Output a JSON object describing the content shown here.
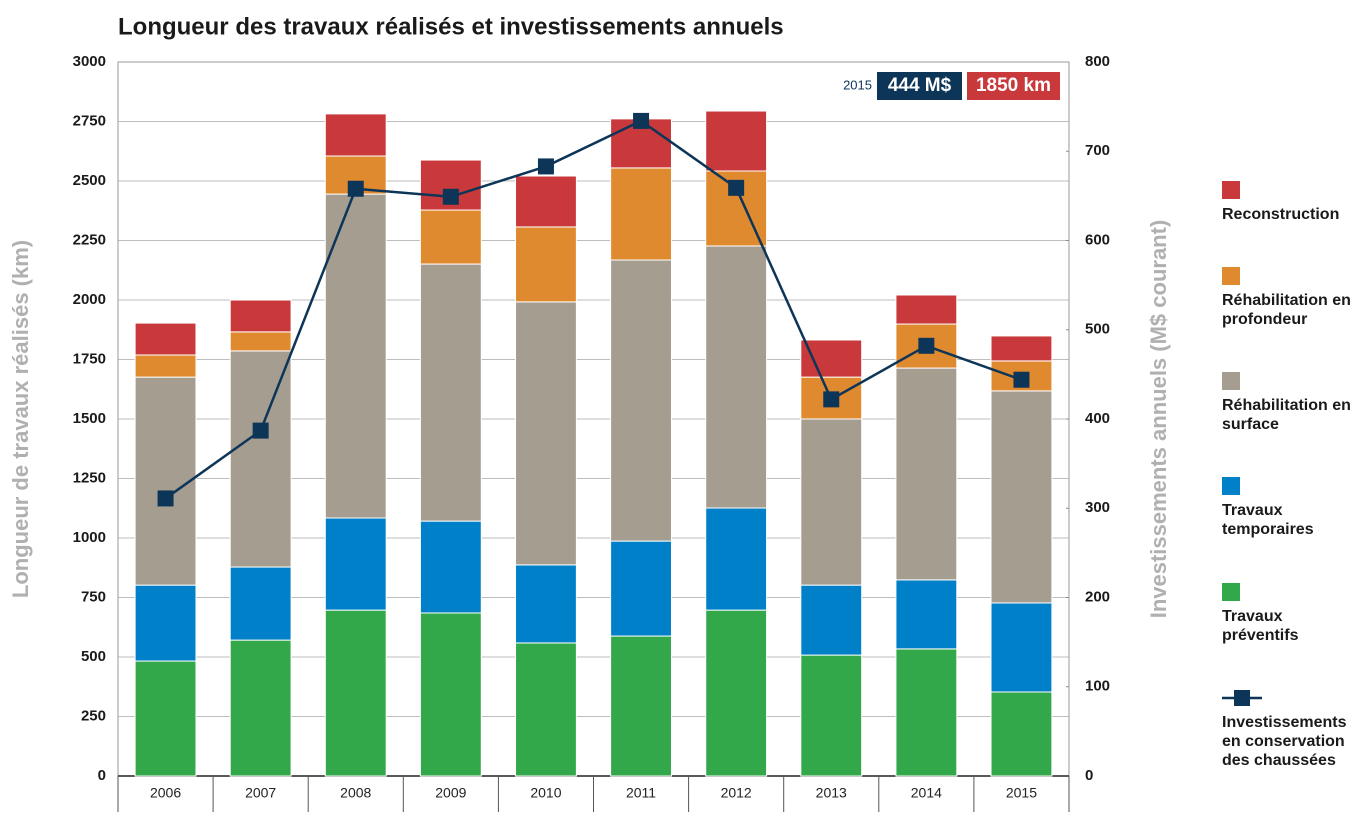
{
  "chart_data": {
    "type": "stacked-bar-line",
    "title": "Longueur des travaux réalisés et investissements annuels",
    "ylabel": "Longueur de travaux réalisés (km)",
    "y2label": "Investissements annuels (M$ courant)",
    "categories": [
      "2006",
      "2007",
      "2008",
      "2009",
      "2010",
      "2011",
      "2012",
      "2013",
      "2014",
      "2015"
    ],
    "ylim": [
      0,
      3000
    ],
    "yticks": [
      0,
      250,
      500,
      750,
      1000,
      1250,
      1500,
      1750,
      2000,
      2250,
      2500,
      2750,
      3000
    ],
    "y2lim": [
      0,
      800
    ],
    "y2ticks": [
      0,
      100,
      200,
      300,
      400,
      500,
      600,
      700,
      800
    ],
    "grid": true,
    "series": [
      {
        "name": "Reconstruction",
        "color": "#c9383a",
        "values": [
          134,
          134,
          177,
          210,
          214,
          206,
          252,
          156,
          122,
          105
        ]
      },
      {
        "name": "Réhabilitation en profondeur",
        "color": "#e08a30",
        "values": [
          93,
          80,
          160,
          227,
          315,
          387,
          315,
          176,
          185,
          126
        ]
      },
      {
        "name": "Réhabilitation en surface",
        "color": "#a69d91",
        "values": [
          874,
          908,
          1361,
          1080,
          1105,
          1181,
          1101,
          698,
          890,
          891
        ]
      },
      {
        "name": "Travaux temporaires",
        "color": "#0080c8",
        "values": [
          319,
          307,
          387,
          386,
          328,
          399,
          429,
          294,
          290,
          374
        ]
      },
      {
        "name": "Travaux préventifs",
        "color": "#33a84a",
        "values": [
          483,
          571,
          697,
          685,
          559,
          588,
          697,
          508,
          534,
          353
        ]
      },
      {
        "name": "Investissements en conservation des chaussées",
        "color": "#0d3558",
        "axis": "y2",
        "values": [
          311,
          387,
          658,
          649,
          683,
          734,
          659,
          422,
          482,
          444
        ]
      }
    ],
    "annotation": {
      "year": "2015",
      "investment": "444 M$",
      "length": "1850 km"
    }
  }
}
